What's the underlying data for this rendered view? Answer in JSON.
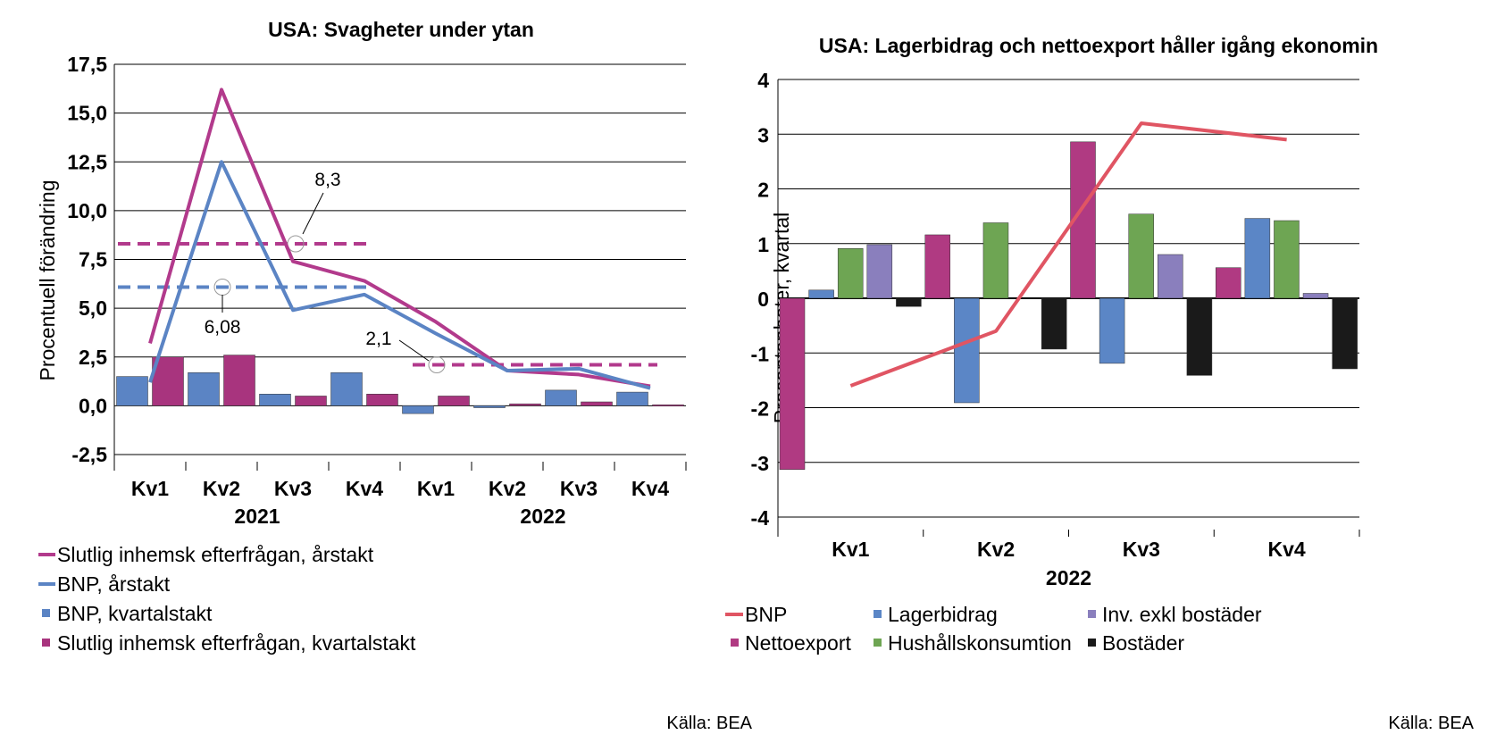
{
  "chart_data": [
    {
      "type": "bar",
      "title": "USA: Svagheter under ytan",
      "ylabel": "Procentuell förändring",
      "ylim": [
        -2.5,
        17.5
      ],
      "yticks": [
        "17,5",
        "15,0",
        "12,5",
        "10,0",
        "7,5",
        "5,0",
        "2,5",
        "0,0",
        "-2,5"
      ],
      "ytick_values": [
        17.5,
        15,
        12.5,
        10,
        7.5,
        5,
        2.5,
        0,
        -2.5
      ],
      "categories": [
        "Kv1",
        "Kv2",
        "Kv3",
        "Kv4",
        "Kv1",
        "Kv2",
        "Kv3",
        "Kv4"
      ],
      "years": [
        "2021",
        "2022"
      ],
      "grid": true,
      "series": [
        {
          "name": "BNP, kvartalstakt",
          "kind": "bar",
          "color": "#5b84c4",
          "values": [
            1.5,
            1.7,
            0.6,
            1.7,
            -0.4,
            -0.1,
            0.8,
            0.7
          ]
        },
        {
          "name": "Slutlig inhemsk efterfrågan, kvartalstakt",
          "kind": "bar",
          "color": "#a8347e",
          "values": [
            2.5,
            2.6,
            0.5,
            0.6,
            0.5,
            0.1,
            0.2,
            0.05
          ]
        },
        {
          "name": "Slutlig inhemsk efterfrågan, årstakt",
          "kind": "line",
          "color": "#b23a8c",
          "values": [
            3.2,
            16.2,
            7.4,
            6.4,
            4.3,
            1.8,
            1.6,
            1.0
          ]
        },
        {
          "name": "BNP, årstakt",
          "kind": "line",
          "color": "#5b84c4",
          "values": [
            1.2,
            12.5,
            4.9,
            5.7,
            3.7,
            1.8,
            1.9,
            0.9
          ]
        }
      ],
      "averages": [
        {
          "value": 8.3,
          "label": "8,3",
          "color": "#b23a8c",
          "from_index": 0,
          "to_index": 3
        },
        {
          "value": 6.08,
          "label": "6,08",
          "color": "#5b84c4",
          "from_index": 0,
          "to_index": 3
        },
        {
          "value": 2.1,
          "label": "2,1",
          "color": "#b23a8c",
          "from_index": 4,
          "to_index": 7
        }
      ],
      "legend": [
        {
          "label": "Slutlig inhemsk efterfrågan, årstakt",
          "color": "#b23a8c",
          "marker": "line"
        },
        {
          "label": "BNP, årstakt",
          "color": "#5b84c4",
          "marker": "line"
        },
        {
          "label": "BNP, kvartalstakt",
          "color": "#5b84c4",
          "marker": "square"
        },
        {
          "label": "Slutlig inhemsk efterfrågan, kvartalstakt",
          "color": "#a8347e",
          "marker": "square"
        }
      ],
      "source": "Källa: BEA"
    },
    {
      "type": "bar",
      "title": "USA: Lagerbidrag och nettoexport håller igång ekonomin",
      "ylabel": "Procentenheter, kvartal",
      "ylim": [
        -4,
        4
      ],
      "yticks": [
        "4",
        "3",
        "2",
        "1",
        "0",
        "-1",
        "-2",
        "-3",
        "-4"
      ],
      "ytick_values": [
        4,
        3,
        2,
        1,
        0,
        -1,
        -2,
        -3,
        -4
      ],
      "categories": [
        "Kv1",
        "Kv2",
        "Kv3",
        "Kv4"
      ],
      "years": [
        "2022"
      ],
      "grid": true,
      "series": [
        {
          "name": "Nettoexport",
          "kind": "bar",
          "color": "#b03a82",
          "values": [
            -3.13,
            1.16,
            2.86,
            0.56
          ]
        },
        {
          "name": "Lagerbidrag",
          "kind": "bar",
          "color": "#5b86c6",
          "values": [
            0.15,
            -1.91,
            -1.19,
            1.46
          ]
        },
        {
          "name": "Hushållskonsumtion",
          "kind": "bar",
          "color": "#6ea553",
          "values": [
            0.91,
            1.38,
            1.54,
            1.42
          ]
        },
        {
          "name": "Inv. exkl bostäder",
          "kind": "bar",
          "color": "#8a7fbd",
          "values": [
            0.98,
            0.0,
            0.8,
            0.09
          ]
        },
        {
          "name": "Bostäder",
          "kind": "bar",
          "color": "#1a1a1a",
          "values": [
            -0.15,
            -0.93,
            -1.41,
            -1.29
          ]
        },
        {
          "name": "BNP",
          "kind": "line",
          "color": "#e05563",
          "values": [
            -1.6,
            -0.6,
            3.2,
            2.9
          ]
        }
      ],
      "legend": [
        {
          "label": "BNP",
          "color": "#e05563",
          "marker": "line"
        },
        {
          "label": "Lagerbidrag",
          "color": "#5b86c6",
          "marker": "square"
        },
        {
          "label": "Inv. exkl bostäder",
          "color": "#8a7fbd",
          "marker": "square"
        },
        {
          "label": "Nettoexport",
          "color": "#b03a82",
          "marker": "square"
        },
        {
          "label": "Hushållskonsumtion",
          "color": "#6ea553",
          "marker": "square"
        },
        {
          "label": "Bostäder",
          "color": "#1a1a1a",
          "marker": "square"
        }
      ],
      "source": "Källa: BEA"
    }
  ]
}
